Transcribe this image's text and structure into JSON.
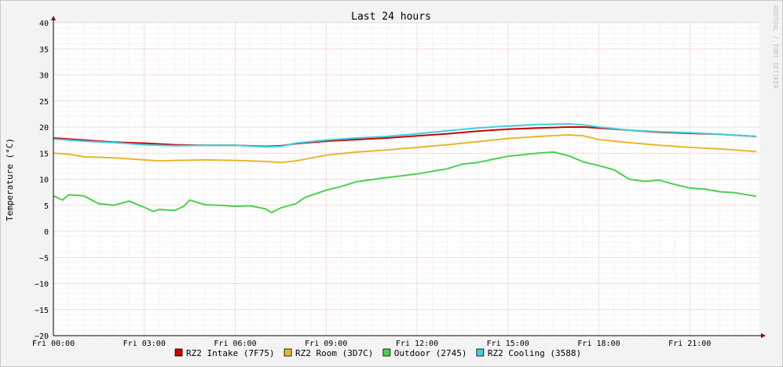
{
  "chart_data": {
    "type": "line",
    "title": "Last 24 hours",
    "ylabel": "Temperature (°C)",
    "watermark": "RRDTOOL / TOBI OETIKER",
    "ylim": [
      -20,
      40
    ],
    "ytick_step": 5,
    "xlim_hours": [
      0,
      23.3
    ],
    "x_ticks": [
      {
        "h": 0,
        "label": "Fri 00:00"
      },
      {
        "h": 3,
        "label": "Fri 03:00"
      },
      {
        "h": 6,
        "label": "Fri 06:00"
      },
      {
        "h": 9,
        "label": "Fri 09:00"
      },
      {
        "h": 12,
        "label": "Fri 12:00"
      },
      {
        "h": 15,
        "label": "Fri 15:00"
      },
      {
        "h": 18,
        "label": "Fri 18:00"
      },
      {
        "h": 21,
        "label": "Fri 21:00"
      }
    ],
    "grid": true,
    "legend_position": "bottom",
    "series": [
      {
        "name": "RZ2 Intake (7F75)",
        "color": "#cc0000",
        "points": [
          [
            0,
            17.9
          ],
          [
            1,
            17.5
          ],
          [
            2,
            17.1
          ],
          [
            3,
            16.9
          ],
          [
            4,
            16.6
          ],
          [
            5,
            16.5
          ],
          [
            6,
            16.5
          ],
          [
            7,
            16.3
          ],
          [
            7.5,
            16.4
          ],
          [
            8,
            16.8
          ],
          [
            9,
            17.3
          ],
          [
            10,
            17.6
          ],
          [
            11,
            17.9
          ],
          [
            12,
            18.3
          ],
          [
            13,
            18.7
          ],
          [
            14,
            19.2
          ],
          [
            15,
            19.6
          ],
          [
            16,
            19.8
          ],
          [
            17,
            20.0
          ],
          [
            17.5,
            20.0
          ],
          [
            18,
            19.8
          ],
          [
            19,
            19.4
          ],
          [
            20,
            19.0
          ],
          [
            21,
            18.8
          ],
          [
            22,
            18.6
          ],
          [
            23.2,
            18.2
          ]
        ]
      },
      {
        "name": "RZ2 Room (3D7C)",
        "color": "#e6b82e",
        "points": [
          [
            0,
            15.0
          ],
          [
            0.5,
            14.8
          ],
          [
            1,
            14.3
          ],
          [
            2,
            14.1
          ],
          [
            3,
            13.7
          ],
          [
            3.5,
            13.5
          ],
          [
            4,
            13.6
          ],
          [
            5,
            13.7
          ],
          [
            6,
            13.6
          ],
          [
            7,
            13.4
          ],
          [
            7.5,
            13.2
          ],
          [
            8,
            13.5
          ],
          [
            9,
            14.6
          ],
          [
            10,
            15.2
          ],
          [
            11,
            15.6
          ],
          [
            12,
            16.1
          ],
          [
            13,
            16.6
          ],
          [
            14,
            17.2
          ],
          [
            15,
            17.8
          ],
          [
            16,
            18.2
          ],
          [
            17,
            18.5
          ],
          [
            17.5,
            18.3
          ],
          [
            18,
            17.6
          ],
          [
            19,
            17.0
          ],
          [
            20,
            16.5
          ],
          [
            21,
            16.1
          ],
          [
            22,
            15.8
          ],
          [
            23.2,
            15.3
          ]
        ]
      },
      {
        "name": "Outdoor (2745)",
        "color": "#4cd14c",
        "points": [
          [
            0,
            6.8
          ],
          [
            0.3,
            6.0
          ],
          [
            0.5,
            7.0
          ],
          [
            1,
            6.8
          ],
          [
            1.5,
            5.3
          ],
          [
            2,
            5.0
          ],
          [
            2.5,
            5.8
          ],
          [
            3,
            4.6
          ],
          [
            3.3,
            3.8
          ],
          [
            3.5,
            4.2
          ],
          [
            4,
            4.0
          ],
          [
            4.3,
            4.8
          ],
          [
            4.5,
            6.0
          ],
          [
            5,
            5.1
          ],
          [
            5.5,
            5.0
          ],
          [
            6,
            4.8
          ],
          [
            6.5,
            4.9
          ],
          [
            7,
            4.3
          ],
          [
            7.2,
            3.6
          ],
          [
            7.5,
            4.5
          ],
          [
            7.8,
            5.0
          ],
          [
            8,
            5.3
          ],
          [
            8.3,
            6.5
          ],
          [
            9,
            7.9
          ],
          [
            9.5,
            8.6
          ],
          [
            10,
            9.5
          ],
          [
            11,
            10.3
          ],
          [
            12,
            11.0
          ],
          [
            13,
            12.0
          ],
          [
            13.5,
            12.9
          ],
          [
            14,
            13.2
          ],
          [
            15,
            14.4
          ],
          [
            16,
            15.0
          ],
          [
            16.5,
            15.2
          ],
          [
            17,
            14.5
          ],
          [
            17.5,
            13.3
          ],
          [
            18,
            12.6
          ],
          [
            18.5,
            11.8
          ],
          [
            19,
            10.0
          ],
          [
            19.5,
            9.6
          ],
          [
            20,
            9.8
          ],
          [
            20.5,
            9.0
          ],
          [
            21,
            8.3
          ],
          [
            21.5,
            8.1
          ],
          [
            22,
            7.6
          ],
          [
            22.5,
            7.4
          ],
          [
            23.2,
            6.7
          ]
        ]
      },
      {
        "name": "RZ2 Cooling (3588)",
        "color": "#3fcfe0",
        "points": [
          [
            0,
            17.7
          ],
          [
            1,
            17.3
          ],
          [
            2,
            17.0
          ],
          [
            3,
            16.6
          ],
          [
            4,
            16.4
          ],
          [
            5,
            16.5
          ],
          [
            6,
            16.5
          ],
          [
            7,
            16.2
          ],
          [
            7.5,
            16.3
          ],
          [
            8,
            16.9
          ],
          [
            9,
            17.5
          ],
          [
            10,
            17.9
          ],
          [
            11,
            18.2
          ],
          [
            12,
            18.7
          ],
          [
            13,
            19.3
          ],
          [
            14,
            19.8
          ],
          [
            15,
            20.2
          ],
          [
            16,
            20.5
          ],
          [
            17,
            20.6
          ],
          [
            17.5,
            20.4
          ],
          [
            18,
            20.0
          ],
          [
            19,
            19.4
          ],
          [
            20,
            19.1
          ],
          [
            21,
            18.9
          ],
          [
            22,
            18.6
          ],
          [
            23.2,
            18.2
          ]
        ]
      }
    ]
  }
}
